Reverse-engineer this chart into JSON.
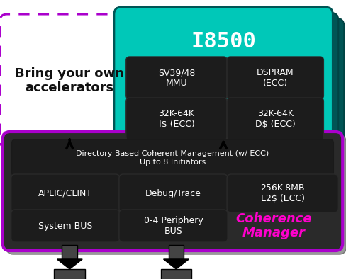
{
  "bg_color": "#ffffff",
  "teal": "#00c8b8",
  "dark_teal": "#007070",
  "darker_teal": "#005555",
  "black_cell": "#1c1c1c",
  "gray_bg": "#999999",
  "gray_shadow": "#777777",
  "purple": "#aa00cc",
  "magenta": "#ff00cc",
  "white": "#ffffff",
  "title": "I8500",
  "accelerator_label": "Bring your own\naccelerators",
  "coherence_label": "Coherence\nManager",
  "top_bar_text": "Directory Based Coherent Management (w/ ECC)\nUp to 8 Initiators",
  "cells_row1": [
    "SV39/48\nMMU",
    "DSPRAM\n(ECC)"
  ],
  "cells_row2": [
    "32K-64K\nI$ (ECC)",
    "32K-64K\nD$ (ECC)"
  ],
  "bottom_cells_row1": [
    "APLIC/CLINT",
    "Debug/Trace",
    "256K-8MB\nL2$ (ECC)"
  ],
  "bottom_cells_row2": [
    "System BUS",
    "0-4 Periphery\nBUS"
  ]
}
